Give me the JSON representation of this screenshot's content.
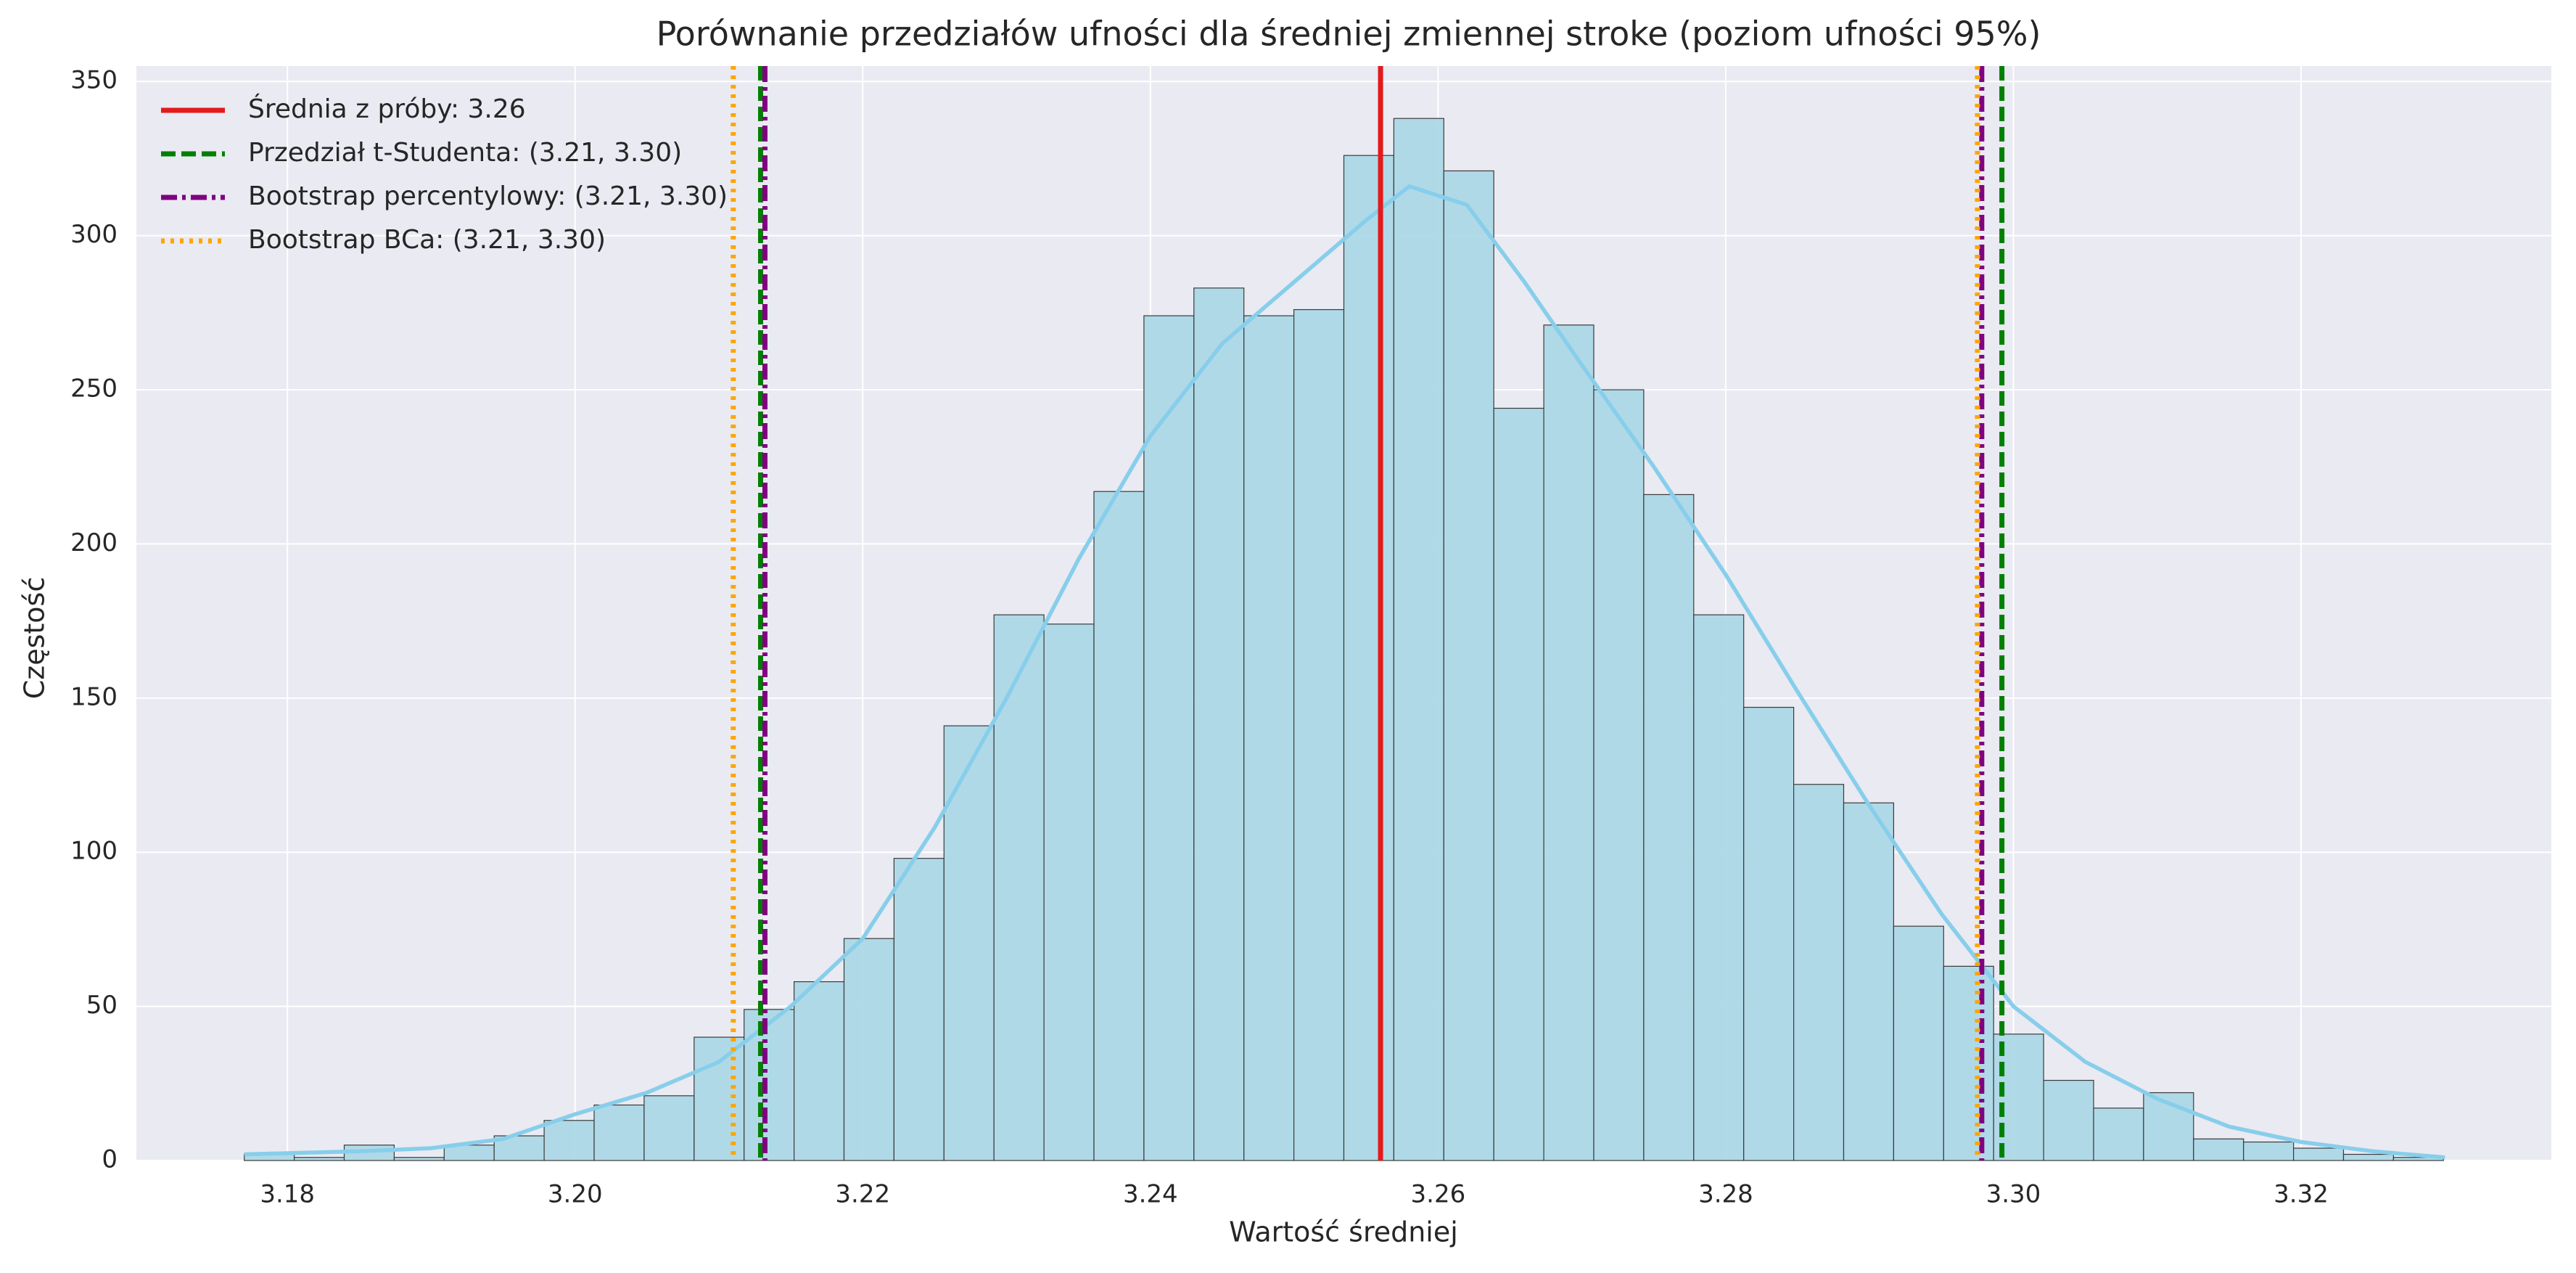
{
  "chart_data": {
    "type": "histogram",
    "title": "Porównanie przedziałów ufności dla średniej zmiennej stroke (poziom ufności 95%)",
    "xlabel": "Wartość średniej",
    "ylabel": "Częstość",
    "bins": [
      3.177,
      3.180475,
      3.18395,
      3.187425,
      3.1909,
      3.194375,
      3.19785,
      3.201325,
      3.2048,
      3.208275,
      3.21175,
      3.215225,
      3.2187,
      3.222175,
      3.22565,
      3.229125,
      3.2326,
      3.236075,
      3.23955,
      3.243025,
      3.2465,
      3.249975,
      3.25345,
      3.256925,
      3.2604,
      3.263875,
      3.26735,
      3.270825,
      3.2743,
      3.277775,
      3.28125,
      3.284725,
      3.2882,
      3.291675,
      3.29515,
      3.298625,
      3.3021,
      3.305575,
      3.30905,
      3.312525,
      3.316,
      3.319475,
      3.32295,
      3.326425,
      3.3299
    ],
    "counts": [
      2,
      1,
      5,
      1,
      5,
      8,
      13,
      18,
      21,
      40,
      49,
      58,
      72,
      98,
      141,
      177,
      174,
      217,
      274,
      283,
      274,
      276,
      326,
      338,
      321,
      244,
      271,
      250,
      216,
      177,
      147,
      122,
      116,
      76,
      63,
      41,
      26,
      17,
      22,
      7,
      6,
      4,
      2,
      1
    ],
    "color": "#add8e6",
    "edgecolor": "#3a3a3a",
    "kde": {
      "color": "#87ceeb",
      "x": [
        3.177,
        3.185,
        3.19,
        3.195,
        3.2,
        3.205,
        3.21,
        3.215,
        3.22,
        3.225,
        3.23,
        3.235,
        3.24,
        3.245,
        3.25,
        3.255,
        3.258,
        3.262,
        3.266,
        3.27,
        3.275,
        3.28,
        3.285,
        3.29,
        3.295,
        3.3,
        3.305,
        3.31,
        3.315,
        3.32,
        3.325,
        3.33
      ],
      "y": [
        2,
        3,
        4,
        7,
        15,
        22,
        32,
        50,
        72,
        108,
        150,
        195,
        235,
        265,
        285,
        305,
        316,
        310,
        285,
        258,
        225,
        190,
        152,
        115,
        80,
        50,
        32,
        20,
        11,
        6,
        3,
        1
      ]
    },
    "vlines": [
      {
        "name": "Średnia z próby: 3.26",
        "color": "#e41a1c",
        "style": "solid",
        "values": [
          3.256
        ]
      },
      {
        "name": "Przedział t-Studenta: (3.21, 3.30)",
        "color": "#008000",
        "style": "dashed",
        "values": [
          3.2129,
          3.2992
        ]
      },
      {
        "name": "Bootstrap percentylowy: (3.21, 3.30)",
        "color": "#800080",
        "style": "dashdot",
        "values": [
          3.2132,
          3.2978
        ]
      },
      {
        "name": "Bootstrap BCa: (3.21, 3.30)",
        "color": "#ffa500",
        "style": "dotted",
        "values": [
          3.211,
          3.2975
        ]
      }
    ],
    "xlim": [
      3.1695,
      3.3374
    ],
    "ylim": [
      0,
      355
    ],
    "xticks": [
      3.18,
      {
        "value": 3.2,
        "label": "3.20"
      },
      3.22,
      3.24,
      3.26,
      3.28,
      {
        "value": 3.3,
        "label": "3.30"
      },
      3.32
    ],
    "yticks": [
      0,
      50,
      100,
      150,
      200,
      250,
      300,
      350
    ],
    "grid": true,
    "legend": "upper left"
  }
}
